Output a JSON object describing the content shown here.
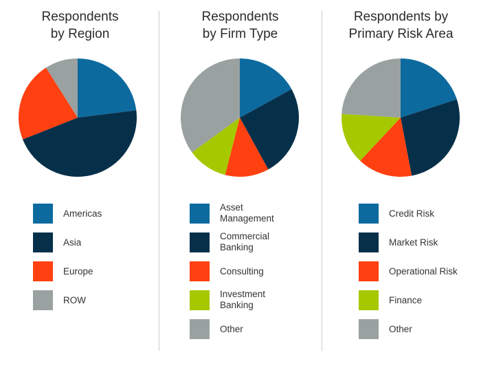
{
  "colors": {
    "blue": "#0d6a9e",
    "navy": "#06304a",
    "orange": "#ff4010",
    "lime": "#a6c800",
    "gray": "#9aa1a1"
  },
  "chart_data": [
    {
      "type": "pie",
      "title_line1": "Respondents",
      "title_line2": "by Region",
      "slices": [
        {
          "label": "Americas",
          "value": 23,
          "color": "#0d6a9e"
        },
        {
          "label": "Asia",
          "value": 46,
          "color": "#06304a"
        },
        {
          "label": "Europe",
          "value": 22,
          "color": "#ff4010"
        },
        {
          "label": "ROW",
          "value": 9,
          "color": "#9aa1a1"
        }
      ]
    },
    {
      "type": "pie",
      "title_line1": "Respondents",
      "title_line2": "by Firm Type",
      "slices": [
        {
          "label": "Asset Management",
          "label_lines": [
            "Asset",
            "Management"
          ],
          "value": 17,
          "color": "#0d6a9e"
        },
        {
          "label": "Commercial Banking",
          "label_lines": [
            "Commercial",
            "Banking"
          ],
          "value": 25,
          "color": "#06304a"
        },
        {
          "label": "Consulting",
          "value": 12,
          "color": "#ff4010"
        },
        {
          "label": "Investment Banking",
          "label_lines": [
            "Investment",
            "Banking"
          ],
          "value": 11,
          "color": "#a6c800"
        },
        {
          "label": "Other",
          "value": 35,
          "color": "#9aa1a1"
        }
      ]
    },
    {
      "type": "pie",
      "title_line1": "Respondents by",
      "title_line2": "Primary Risk Area",
      "slices": [
        {
          "label": "Credit Risk",
          "value": 20,
          "color": "#0d6a9e"
        },
        {
          "label": "Market Risk",
          "value": 27,
          "color": "#06304a"
        },
        {
          "label": "Operational Risk",
          "value": 15,
          "color": "#ff4010"
        },
        {
          "label": "Finance",
          "value": 14,
          "color": "#a6c800"
        },
        {
          "label": "Other",
          "value": 24,
          "color": "#9aa1a1"
        }
      ]
    }
  ]
}
